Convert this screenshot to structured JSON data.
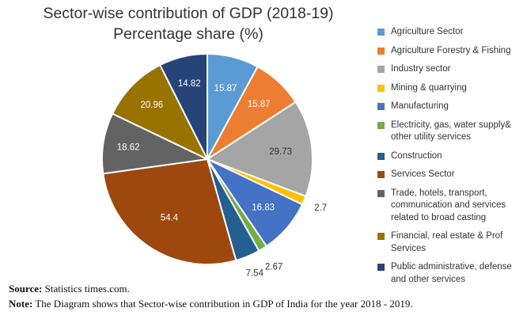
{
  "chart_data": {
    "type": "pie",
    "title": "Sector-wise contribution of GDP (2018-19)",
    "subtitle": "Percentage share (%)",
    "legend_position": "right",
    "slices": [
      {
        "label": "Agriculture Sector",
        "value": 15.87,
        "value_label": "15.87",
        "color": "#5b9bd5"
      },
      {
        "label": "Agriculture Forestry & Fishing",
        "value": 15.87,
        "value_label": "15.87",
        "color": "#ed7d31"
      },
      {
        "label": "Industry sector",
        "value": 29.73,
        "value_label": "29.73",
        "color": "#a5a5a5"
      },
      {
        "label": "Mining & quarrying",
        "value": 2.7,
        "value_label": "2.7",
        "color": "#ffc000"
      },
      {
        "label": "Manufacturing",
        "value": 16.83,
        "value_label": "16.83",
        "color": "#4472c4"
      },
      {
        "label": "Electricity, gas, water supply& other utility services",
        "value": 2.67,
        "value_label": "2.67",
        "color": "#70ad47"
      },
      {
        "label": "Construction",
        "value": 7.54,
        "value_label": "7.54",
        "color": "#255e91"
      },
      {
        "label": "Services Sector",
        "value": 54.4,
        "value_label": "54.4",
        "color": "#9e480e"
      },
      {
        "label": "Trade, hotels, transport, communication and services related to broad casting",
        "value": 18.62,
        "value_label": "18.62",
        "color": "#636363"
      },
      {
        "label": "Financial, real estate & Prof Services",
        "value": 20.96,
        "value_label": "20.96",
        "color": "#997300"
      },
      {
        "label": "Public administrative, defense and other services",
        "value": 14.82,
        "value_label": "14.82",
        "color": "#264478"
      }
    ]
  },
  "notes": {
    "source_label": "Source:",
    "source_text": " Statistics times.com.",
    "note_label": "Note:",
    "note_text": " The Diagram shows that Sector-wise contribution in GDP of India for the year 2018 - 2019."
  }
}
